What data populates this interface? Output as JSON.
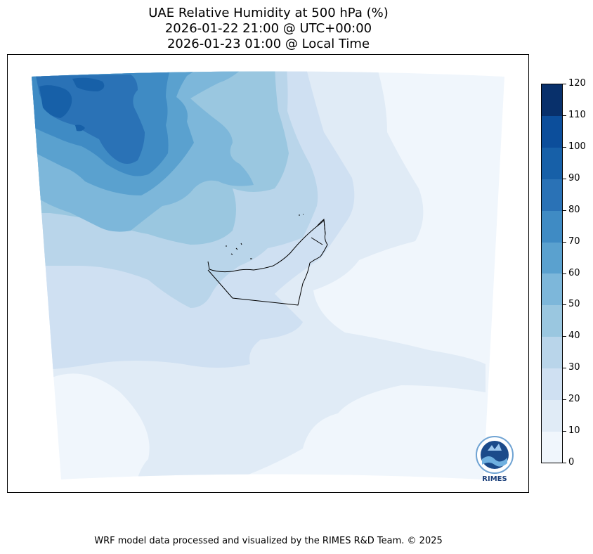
{
  "title": {
    "line1": "UAE Relative Humidity at 500 hPa (%)",
    "line2": "2026-01-22 21:00 @ UTC+00:00",
    "line3": "2026-01-23 01:00 @ Local Time"
  },
  "colorbar": {
    "ticks": [
      "0",
      "10",
      "20",
      "30",
      "40",
      "50",
      "60",
      "70",
      "80",
      "90",
      "100",
      "110",
      "120"
    ],
    "colors": [
      "#f0f6fc",
      "#e0ebf6",
      "#cfe0f2",
      "#b9d5ea",
      "#9ac7e0",
      "#7db7da",
      "#5aa1cf",
      "#3f8bc4",
      "#2a72b6",
      "#1760a8",
      "#0c4e9b",
      "#08306b"
    ]
  },
  "footer": "WRF model data processed and visualized by the RIMES R&D Team. © 2025",
  "logo": {
    "text": "RIMES",
    "icon": "rimes-logo-icon"
  }
}
